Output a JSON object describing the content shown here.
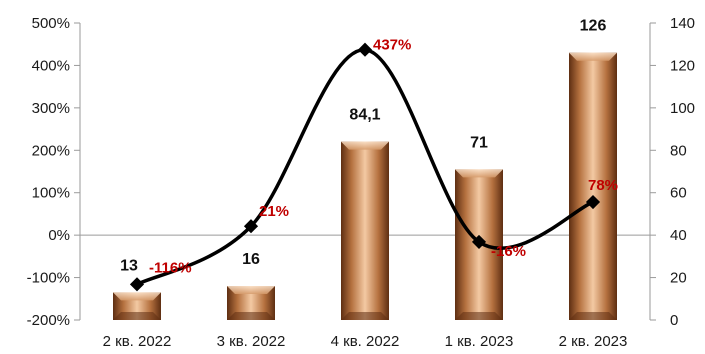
{
  "chart_data": {
    "type": "bar",
    "categories": [
      "2 кв. 2022",
      "3 кв. 2022",
      "4 кв. 2022",
      "1 кв. 2023",
      "2 кв. 2023"
    ],
    "series": [
      {
        "type": "bar",
        "axis": "right",
        "values": [
          13,
          16,
          84.1,
          71,
          126
        ],
        "labels": [
          "13",
          "16",
          "84,1",
          "71",
          "126"
        ]
      },
      {
        "type": "line",
        "axis": "left",
        "values": [
          -116,
          21,
          437,
          -16,
          78
        ],
        "labels": [
          "-116%",
          "21%",
          "437%",
          "-16%",
          "78%"
        ]
      }
    ],
    "y_left": {
      "range": [
        -200,
        500
      ],
      "ticks": [
        "-200%",
        "-100%",
        "0%",
        "100%",
        "200%",
        "300%",
        "400%",
        "500%"
      ]
    },
    "y_right": {
      "range": [
        0,
        140
      ],
      "ticks": [
        "0",
        "20",
        "40",
        "60",
        "80",
        "100",
        "120",
        "140"
      ]
    },
    "title": "",
    "xlabel": "",
    "ylabel": "",
    "grid": false,
    "legend": "none",
    "colors": {
      "bar_light": "#f3c9a3",
      "bar_mid": "#c98b5a",
      "bar_dark": "#5e2e12",
      "line": "#000000",
      "pct_label": "#c00000",
      "axis": "#9a9a9a"
    }
  }
}
